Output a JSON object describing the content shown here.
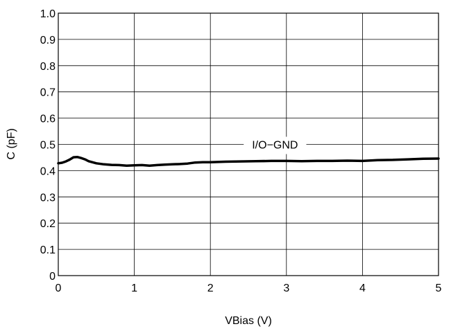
{
  "chart_data": {
    "type": "line",
    "xlabel": "VBias (V)",
    "ylabel": "C (pF)",
    "xlim": [
      0,
      5
    ],
    "ylim": [
      0,
      1.0
    ],
    "x_ticks": [
      "0",
      "1",
      "2",
      "3",
      "4",
      "5"
    ],
    "y_ticks": [
      "0",
      "0.1",
      "0.2",
      "0.3",
      "0.4",
      "0.5",
      "0.6",
      "0.7",
      "0.8",
      "0.9",
      "1.0"
    ],
    "grid": true,
    "legend": "none",
    "line_color": "#000000",
    "annotations": [
      {
        "text": "I/O−GND",
        "x": 2.85,
        "y": 0.5
      }
    ],
    "series": [
      {
        "x": [
          0.0,
          0.05,
          0.1,
          0.15,
          0.2,
          0.25,
          0.3,
          0.35,
          0.4,
          0.5,
          0.6,
          0.7,
          0.8,
          0.9,
          1.0,
          1.1,
          1.2,
          1.3,
          1.4,
          1.5,
          1.6,
          1.7,
          1.8,
          1.9,
          2.0,
          2.2,
          2.4,
          2.6,
          2.8,
          3.0,
          3.2,
          3.4,
          3.6,
          3.8,
          4.0,
          4.2,
          4.4,
          4.6,
          4.8,
          5.0
        ],
        "y": [
          0.428,
          0.43,
          0.435,
          0.442,
          0.451,
          0.452,
          0.448,
          0.443,
          0.436,
          0.428,
          0.424,
          0.422,
          0.421,
          0.419,
          0.42,
          0.421,
          0.419,
          0.421,
          0.423,
          0.424,
          0.425,
          0.427,
          0.431,
          0.432,
          0.432,
          0.434,
          0.435,
          0.436,
          0.437,
          0.437,
          0.436,
          0.437,
          0.437,
          0.438,
          0.437,
          0.44,
          0.441,
          0.443,
          0.445,
          0.446
        ]
      }
    ]
  }
}
